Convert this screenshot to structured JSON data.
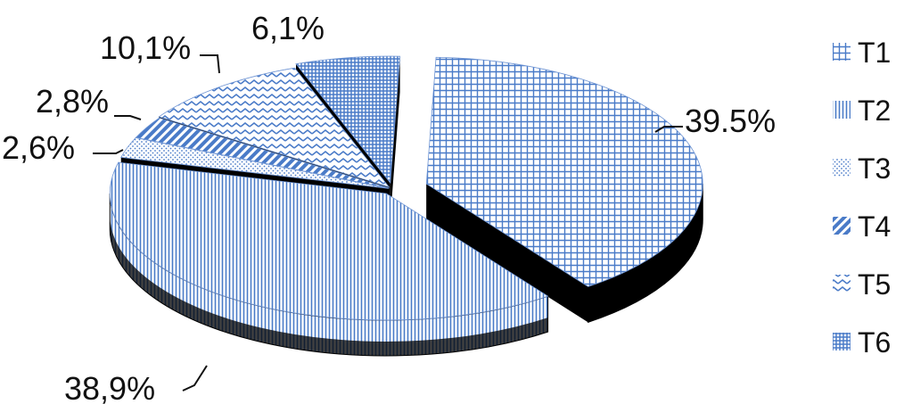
{
  "chart_data": {
    "type": "pie",
    "style": "3d-exploded",
    "legend_placement": "right",
    "categories": [
      "T1",
      "T2",
      "T3",
      "T4",
      "T5",
      "T6"
    ],
    "values": [
      39.5,
      38.9,
      2.6,
      2.8,
      10.1,
      6.1
    ],
    "data_labels": [
      "39.5%",
      "38,9%",
      "2,6%",
      "2,8%",
      "10,1%",
      "6,1%"
    ],
    "colors": {
      "pattern": "#4a7bc8",
      "side": "#000000",
      "background": "#ffffff"
    }
  }
}
